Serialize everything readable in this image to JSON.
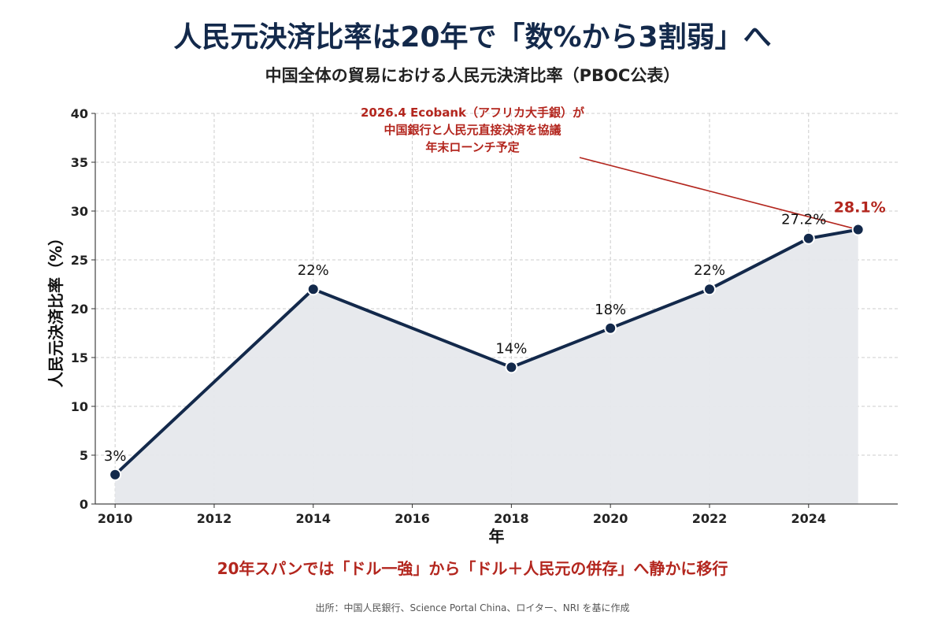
{
  "title": "人民元決済比率は20年で「数%から3割弱」へ",
  "subtitle": "中国全体の貿易における人民元決済比率（PBOC公表）",
  "annotation": {
    "lines": [
      "2026.4 Ecobank（アフリカ大手銀）が",
      "中国銀行と人民元直接決済を協議",
      "年末ローンチ予定"
    ]
  },
  "conclusion": "20年スパンでは「ドル一強」から「ドル＋人民元の併存」へ静かに移行",
  "source": "出所：中国人民銀行、Science Portal China、ロイター、NRI を基に作成",
  "colors": {
    "line": "#13294b",
    "area": "#e6e8ec",
    "highlight": "#b3261e",
    "grid": "#cccccc"
  },
  "chart_data": {
    "type": "line",
    "xlabel": "年",
    "ylabel": "人民元決済比率（%）",
    "xlim": [
      2009.6,
      2025.8
    ],
    "ylim": [
      0,
      40
    ],
    "xticks": [
      2010,
      2012,
      2014,
      2016,
      2018,
      2020,
      2022,
      2024
    ],
    "yticks": [
      0,
      5,
      10,
      15,
      20,
      25,
      30,
      35,
      40
    ],
    "grid": true,
    "fill_below": true,
    "points": [
      {
        "x": 2010,
        "y": 3,
        "label": "3%"
      },
      {
        "x": 2014,
        "y": 22,
        "label": "22%"
      },
      {
        "x": 2018,
        "y": 14,
        "label": "14%"
      },
      {
        "x": 2020,
        "y": 18,
        "label": "18%"
      },
      {
        "x": 2022,
        "y": 22,
        "label": "22%"
      },
      {
        "x": 2024,
        "y": 27.2,
        "label": "27.2%"
      },
      {
        "x": 2025,
        "y": 28.1,
        "label": "28.1%",
        "highlight": true
      }
    ]
  }
}
